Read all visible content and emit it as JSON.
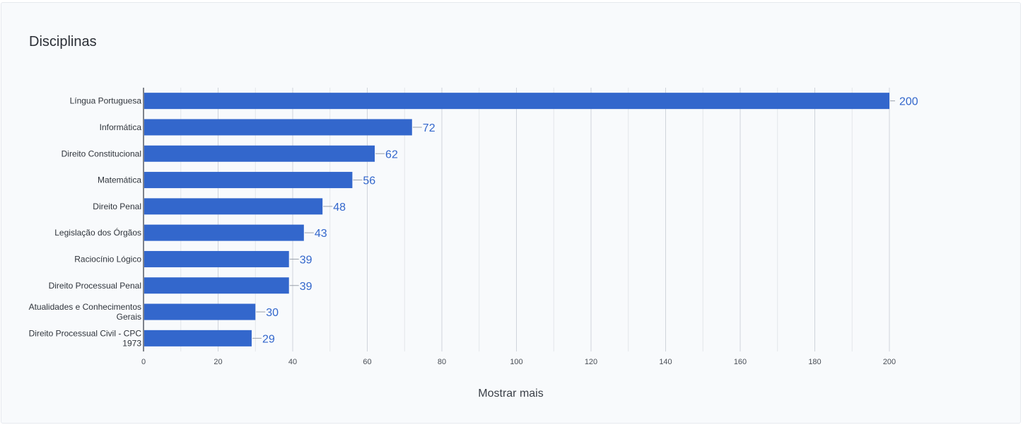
{
  "card": {
    "title": "Disciplinas",
    "show_more_label": "Mostrar mais"
  },
  "colors": {
    "bar": "#3367cc",
    "label": "#3367cc",
    "grid": "#d7dbe1",
    "axis": "#555b64"
  },
  "chart_data": {
    "type": "bar",
    "orientation": "horizontal",
    "title": "Disciplinas",
    "xlabel": "",
    "ylabel": "",
    "xlim": [
      0,
      200
    ],
    "xticks": [
      0,
      20,
      40,
      60,
      80,
      100,
      120,
      140,
      160,
      180,
      200
    ],
    "grid": true,
    "categories": [
      "Língua Portuguesa",
      "Informática",
      "Direito Constitucional",
      "Matemática",
      "Direito Penal",
      "Legislação dos Órgãos",
      "Raciocínio Lógico",
      "Direito Processual Penal",
      "Atualidades e Conhecimentos Gerais",
      "Direito Processual Civil - CPC 1973"
    ],
    "values": [
      200,
      72,
      62,
      56,
      48,
      43,
      39,
      39,
      30,
      29
    ]
  }
}
